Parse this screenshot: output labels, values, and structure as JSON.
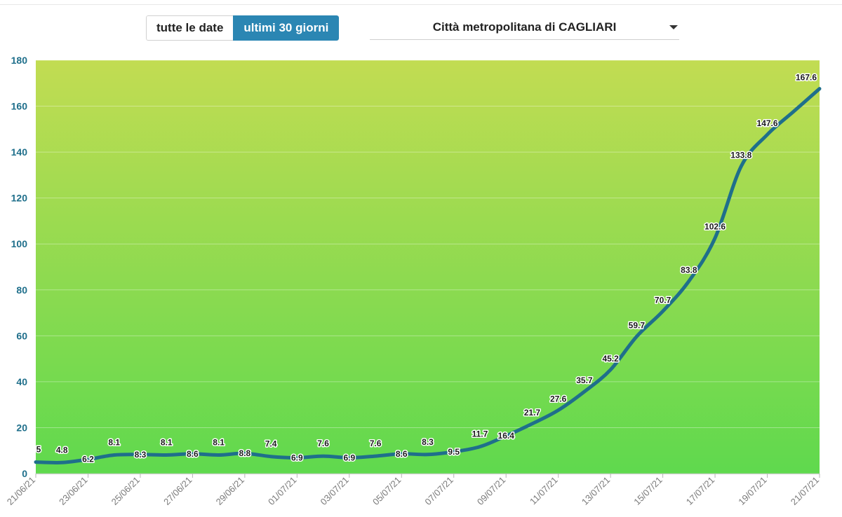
{
  "controls": {
    "toggle_all": "tutte le date",
    "toggle_30": "ultimi 30 giorni",
    "selected_area": "Città metropolitana di CAGLIARI",
    "dropdown_icon": "caret-down-icon"
  },
  "colors": {
    "accent": "#2b86b3",
    "line": "#1f6f8b",
    "axis_text": "#1f6f8b",
    "bg_top": "#c2dc52",
    "bg_bottom": "#5fd94e"
  },
  "chart_data": {
    "type": "area",
    "title": "",
    "xlabel": "",
    "ylabel": "",
    "ylim": [
      0,
      180
    ],
    "yticks": [
      0,
      20,
      40,
      60,
      80,
      100,
      120,
      140,
      160,
      180
    ],
    "grid": true,
    "x_tick_labels": [
      "21/06/21",
      "23/06/21",
      "25/06/21",
      "27/06/21",
      "29/06/21",
      "01/07/21",
      "03/07/21",
      "05/07/21",
      "07/07/21",
      "09/07/21",
      "11/07/21",
      "13/07/21",
      "15/07/21",
      "17/07/21",
      "19/07/21",
      "21/07/21"
    ],
    "series": [
      {
        "x": [
          "21/06/21",
          "22/06/21",
          "23/06/21",
          "24/06/21",
          "25/06/21",
          "26/06/21",
          "27/06/21",
          "28/06/21",
          "29/06/21",
          "30/06/21",
          "01/07/21",
          "02/07/21",
          "03/07/21",
          "04/07/21",
          "05/07/21",
          "06/07/21",
          "07/07/21",
          "08/07/21",
          "09/07/21",
          "10/07/21",
          "11/07/21",
          "12/07/21",
          "13/07/21",
          "14/07/21",
          "15/07/21",
          "16/07/21",
          "17/07/21",
          "18/07/21",
          "19/07/21",
          "20/07/21",
          "21/07/21"
        ],
        "values": [
          5,
          4.8,
          6.2,
          8.1,
          8.3,
          8.1,
          8.6,
          8.1,
          8.8,
          7.4,
          6.9,
          7.6,
          6.9,
          7.6,
          8.6,
          8.3,
          9.5,
          11.7,
          16.4,
          21.7,
          27.6,
          35.7,
          45.2,
          59.7,
          70.7,
          83.8,
          102.6,
          133.8,
          147.6,
          null,
          167.6
        ]
      }
    ]
  }
}
